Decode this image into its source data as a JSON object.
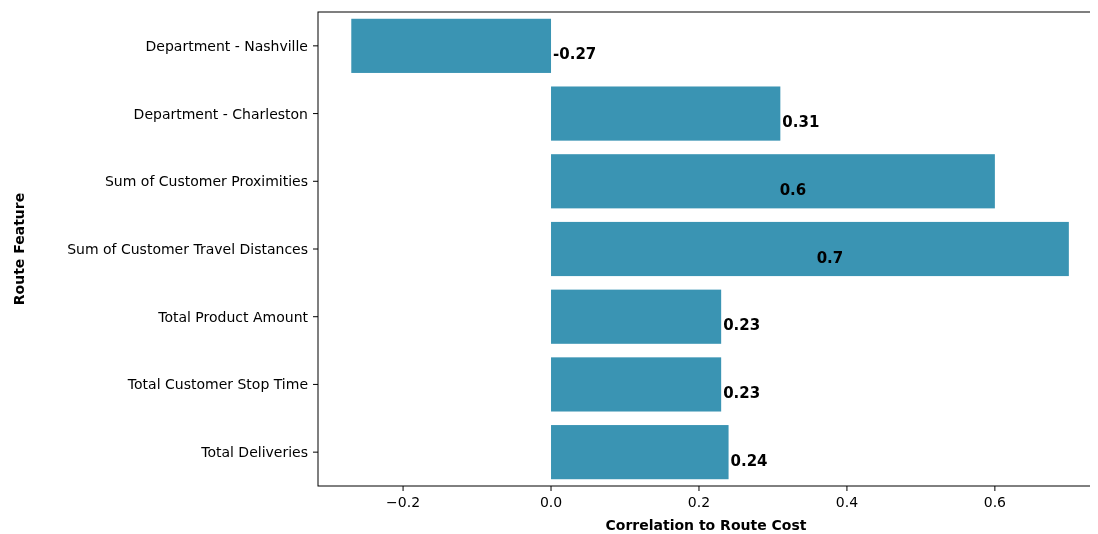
{
  "chart_data": {
    "type": "bar",
    "orientation": "horizontal",
    "xlabel": "Correlation to Route Cost",
    "ylabel": "Route Feature",
    "categories": [
      "Department - Nashville",
      "Department - Charleston",
      "Sum of Customer Proximities",
      "Sum of Customer Travel Distances",
      "Total Product Amount",
      "Total Customer Stop Time",
      "Total Deliveries"
    ],
    "values": [
      -0.27,
      0.31,
      0.6,
      0.7,
      0.23,
      0.23,
      0.24
    ],
    "color": "#3a94b3",
    "data_labels": true,
    "grid": false,
    "xlim": [
      -0.315,
      0.734
    ],
    "xticks": [
      {
        "value": -0.2,
        "label": "−0.2"
      },
      {
        "value": 0,
        "label": "0.0"
      },
      {
        "value": 0.2,
        "label": "0.2"
      },
      {
        "value": 0.4,
        "label": "0.4"
      },
      {
        "value": 0.6,
        "label": "0.6"
      }
    ]
  }
}
